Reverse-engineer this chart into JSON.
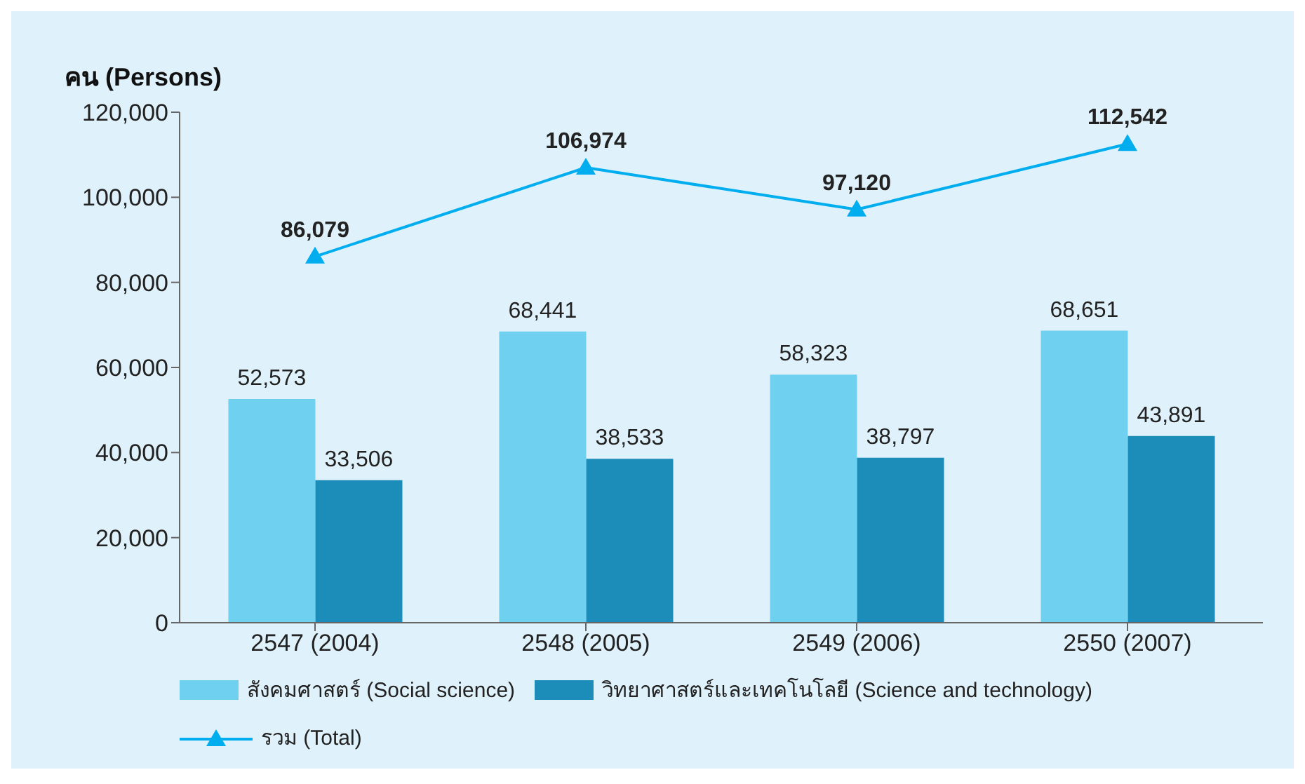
{
  "chart_data": {
    "type": "bar",
    "ylabel": "คน (Persons)",
    "categories": [
      "2547  (2004)",
      "2548  (2005)",
      "2549  (2006)",
      "2550  (2007)"
    ],
    "series": [
      {
        "name": "สังคมศาสตร์ (Social science)",
        "color": "#6fd0f0",
        "values": [
          52573,
          68441,
          58323,
          68651
        ],
        "value_labels": [
          "52,573",
          "68,441",
          "58,323",
          "68,651"
        ]
      },
      {
        "name": "วิทยาศาสตร์และเทคโนโลยี (Science and technology)",
        "color": "#1b8db8",
        "values": [
          33506,
          38533,
          38797,
          43891
        ],
        "value_labels": [
          "33,506",
          "38,533",
          "38,797",
          "43,891"
        ]
      },
      {
        "name": "รวม (Total)",
        "type": "line",
        "color": "#00aeef",
        "marker": "triangle",
        "values": [
          86079,
          106974,
          97120,
          112542
        ],
        "value_labels": [
          "86,079",
          "106,974",
          "97,120",
          "112,542"
        ]
      }
    ],
    "ylim": [
      0,
      120000
    ],
    "yticks": [
      0,
      {
        "value": 20000,
        "label": "20,000"
      },
      {
        "value": 40000,
        "label": "40,000"
      },
      {
        "value": 60000,
        "label": "60,000"
      },
      {
        "value": 80000,
        "label": "80,000"
      },
      {
        "value": 100000,
        "label": "100,000"
      },
      {
        "value": 120000,
        "label": "120,000"
      }
    ],
    "grid": false,
    "legend": "bottom"
  }
}
